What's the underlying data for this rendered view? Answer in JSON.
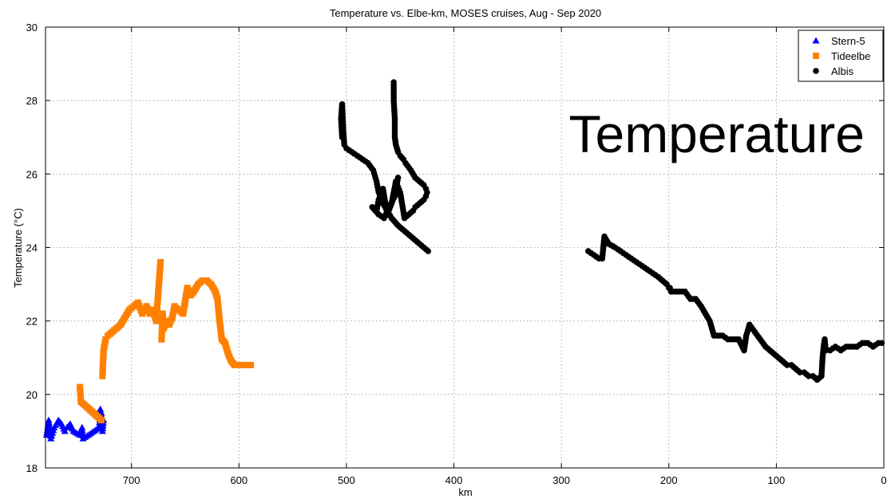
{
  "chart_data": {
    "type": "scatter",
    "title": "Temperature vs. Elbe-km, MOSES cruises, Aug - Sep 2020",
    "xlabel": "km",
    "ylabel": "Temperature (°C)",
    "annotation": "Temperature",
    "xlim": [
      780,
      0
    ],
    "ylim": [
      18,
      30
    ],
    "x_reversed": true,
    "x_ticks": [
      700,
      600,
      500,
      400,
      300,
      200,
      100,
      0
    ],
    "y_ticks": [
      18,
      20,
      22,
      24,
      26,
      28,
      30
    ],
    "grid": true,
    "legend_position": "top-right",
    "series": [
      {
        "name": "Stern-5",
        "marker": "triangle",
        "color": "#0000ff",
        "x": [
          779,
          777,
          775,
          772,
          768,
          765,
          762,
          760,
          757,
          754,
          748,
          746,
          745,
          730,
          729,
          728,
          727,
          726
        ],
        "y": [
          18.9,
          19.3,
          18.8,
          19.1,
          19.3,
          19.2,
          19.0,
          19.1,
          19.2,
          19.0,
          18.9,
          19.1,
          18.8,
          19.1,
          19.6,
          19.5,
          19.0,
          19.3
        ]
      },
      {
        "name": "Tideelbe",
        "marker": "square",
        "color": "#ff8000",
        "x": [
          748,
          747,
          728,
          727,
          726,
          724,
          722,
          718,
          714,
          710,
          706,
          702,
          698,
          694,
          690,
          686,
          683,
          680,
          677,
          675,
          673,
          672,
          671,
          670,
          668,
          665,
          662,
          660,
          656,
          652,
          648,
          645,
          642,
          638,
          634,
          630,
          626,
          622,
          620,
          618,
          616,
          613,
          610,
          607,
          604,
          600,
          596,
          592,
          589
        ],
        "y": [
          20.2,
          19.8,
          19.3,
          20.5,
          21.2,
          21.5,
          21.6,
          21.7,
          21.8,
          21.9,
          22.1,
          22.3,
          22.4,
          22.5,
          22.2,
          22.4,
          22.2,
          22.3,
          22.0,
          22.8,
          23.6,
          21.5,
          22.2,
          21.8,
          22.0,
          21.9,
          22.1,
          22.4,
          22.3,
          22.2,
          22.9,
          22.7,
          22.8,
          23.0,
          23.1,
          23.1,
          23.0,
          22.8,
          22.6,
          22.0,
          21.5,
          21.4,
          21.1,
          20.9,
          20.8,
          20.8,
          20.8,
          20.8,
          20.8
        ]
      },
      {
        "name": "Albis",
        "marker": "circle",
        "color": "#000000",
        "x": [
          504,
          505,
          504,
          503,
          502,
          500,
          495,
          490,
          485,
          480,
          475,
          472,
          470,
          466,
          462,
          458,
          455,
          452,
          448,
          444,
          440,
          436,
          432,
          428,
          424,
          456,
          456,
          455,
          455,
          454,
          452,
          450,
          447,
          445,
          440,
          436,
          432,
          428,
          426,
          425,
          426,
          428,
          432,
          436,
          438,
          442,
          446,
          450,
          454,
          458,
          462,
          466,
          470,
          472,
          476,
          470,
          465,
          460,
          455,
          452,
          275,
          270,
          265,
          262,
          260,
          256,
          250,
          245,
          240,
          235,
          230,
          225,
          220,
          215,
          210,
          206,
          202,
          200,
          199,
          198,
          185,
          180,
          175,
          170,
          166,
          162,
          160,
          158,
          155,
          150,
          145,
          140,
          135,
          130,
          128,
          125,
          120,
          115,
          110,
          106,
          102,
          98,
          94,
          90,
          86,
          82,
          78,
          74,
          70,
          66,
          62,
          58,
          57,
          56,
          55,
          54,
          50,
          45,
          40,
          35,
          30,
          25,
          20,
          15,
          10,
          5,
          2
        ],
        "y": [
          27.0,
          27.5,
          27.9,
          27.2,
          26.8,
          26.7,
          26.6,
          26.5,
          26.4,
          26.3,
          26.1,
          25.8,
          25.5,
          25.2,
          25.0,
          24.8,
          24.7,
          24.6,
          24.5,
          24.4,
          24.3,
          24.2,
          24.1,
          24.0,
          23.9,
          28.5,
          28.0,
          27.5,
          27.0,
          26.8,
          26.6,
          26.5,
          26.4,
          26.3,
          26.1,
          25.9,
          25.8,
          25.7,
          25.6,
          25.5,
          25.4,
          25.3,
          25.2,
          25.1,
          25.0,
          24.9,
          24.8,
          25.5,
          25.8,
          25.2,
          24.9,
          25.6,
          25.3,
          25.0,
          25.1,
          24.9,
          24.8,
          25.1,
          25.4,
          25.9,
          23.9,
          23.8,
          23.7,
          23.7,
          24.3,
          24.1,
          24.0,
          23.9,
          23.8,
          23.7,
          23.6,
          23.5,
          23.4,
          23.3,
          23.2,
          23.1,
          23.0,
          22.9,
          22.9,
          22.8,
          22.8,
          22.6,
          22.6,
          22.4,
          22.2,
          22.0,
          21.8,
          21.6,
          21.6,
          21.6,
          21.5,
          21.5,
          21.5,
          21.2,
          21.6,
          21.9,
          21.7,
          21.5,
          21.3,
          21.2,
          21.1,
          21.0,
          20.9,
          20.8,
          20.8,
          20.7,
          20.6,
          20.6,
          20.5,
          20.5,
          20.4,
          20.5,
          21.0,
          21.3,
          21.5,
          21.2,
          21.2,
          21.3,
          21.2,
          21.3,
          21.3,
          21.3,
          21.4,
          21.4,
          21.3,
          21.4,
          21.4
        ]
      }
    ]
  }
}
